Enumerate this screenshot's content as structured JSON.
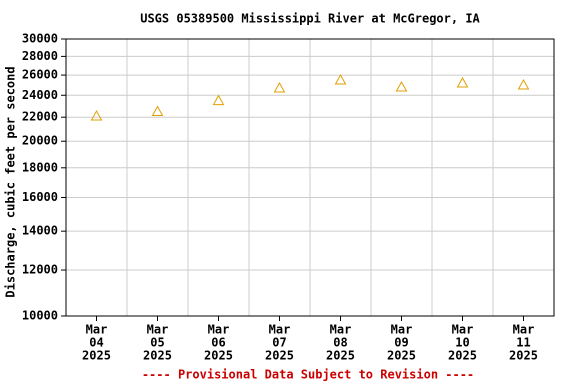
{
  "chart_data": {
    "type": "scatter",
    "title": "USGS 05389500 Mississippi River at McGregor, IA",
    "y_label": "Discharge, cubic feet per second",
    "annotation": "---- Provisional Data Subject to Revision ----",
    "categories": [
      [
        "Mar",
        "04",
        "2025"
      ],
      [
        "Mar",
        "05",
        "2025"
      ],
      [
        "Mar",
        "06",
        "2025"
      ],
      [
        "Mar",
        "07",
        "2025"
      ],
      [
        "Mar",
        "08",
        "2025"
      ],
      [
        "Mar",
        "09",
        "2025"
      ],
      [
        "Mar",
        "10",
        "2025"
      ],
      [
        "Mar",
        "11",
        "2025"
      ]
    ],
    "values": [
      22100,
      22500,
      23500,
      24700,
      25500,
      24800,
      25200,
      25000
    ],
    "color": "#e0a000",
    "log_scale": true,
    "grid": true,
    "ylim": [
      10000,
      30000
    ],
    "yticks": [
      10000,
      12000,
      14000,
      16000,
      18000,
      20000,
      22000,
      24000,
      26000,
      28000,
      30000
    ]
  }
}
